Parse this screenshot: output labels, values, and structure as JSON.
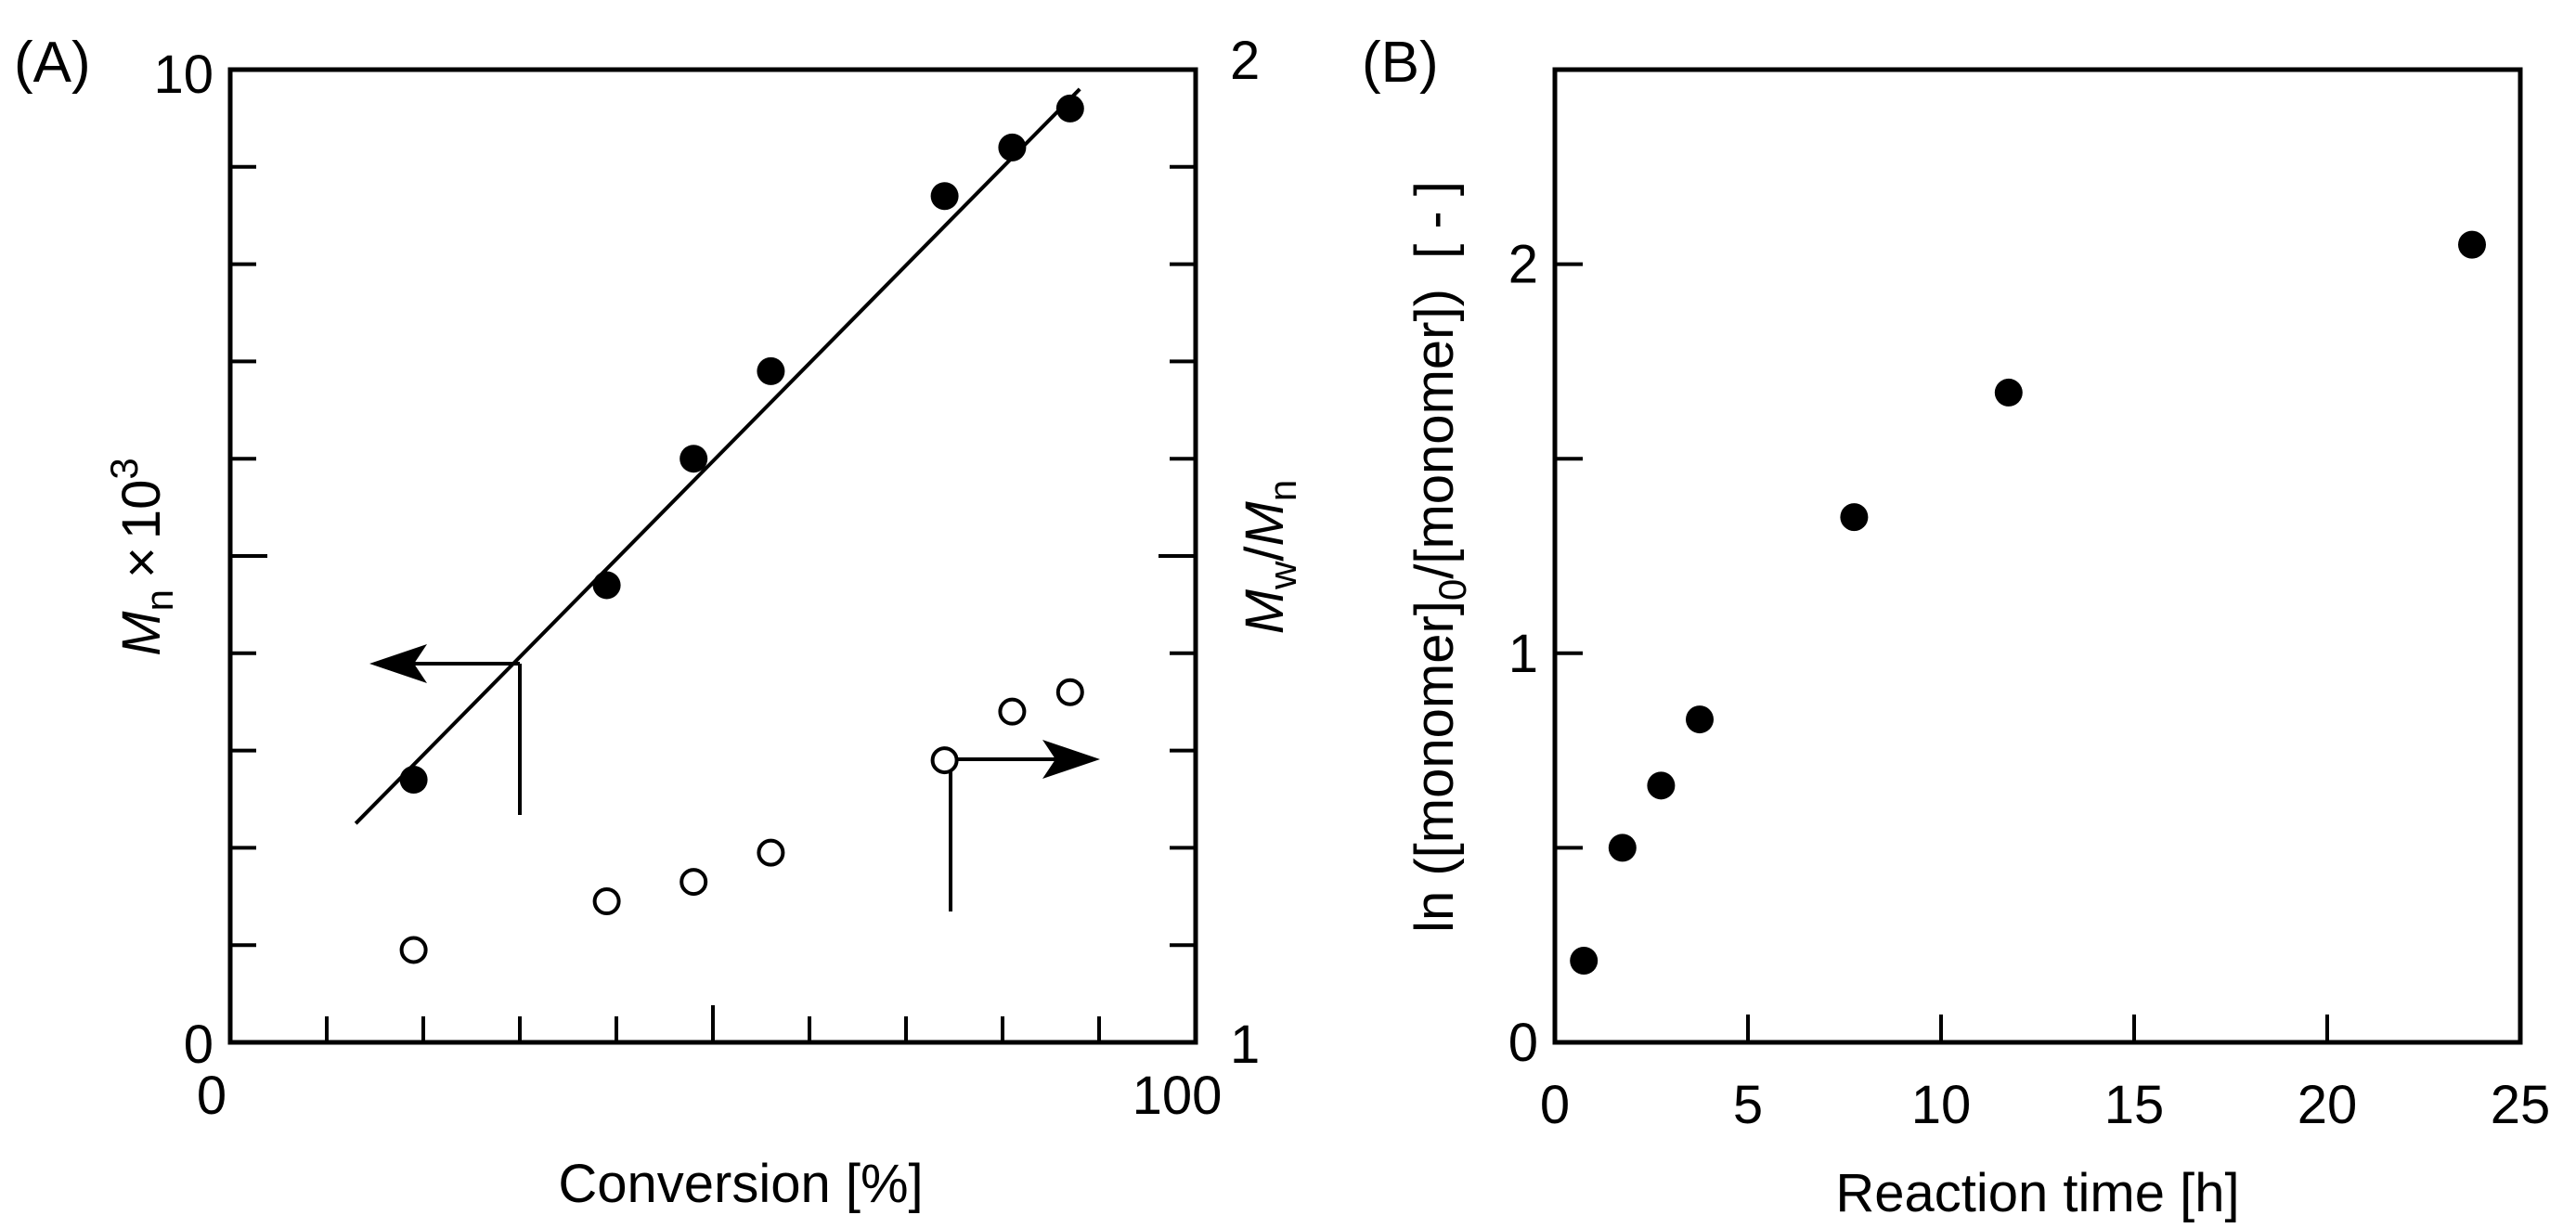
{
  "chart_data": [
    {
      "panel_label": "(A)",
      "type": "scatter",
      "xlabel": "Conversion [%]",
      "xlim": [
        0,
        100
      ],
      "x_ticks": [
        {
          "value": 0,
          "label": "0"
        },
        {
          "value": 100,
          "label": "100"
        }
      ],
      "ylabel_left": {
        "main": "M",
        "sub": "n",
        "times": "×",
        "base": "10",
        "sup": "3"
      },
      "ylim_left": [
        0,
        10
      ],
      "y_left_ticks": [
        {
          "value": 0,
          "label": "0"
        },
        {
          "value": 10,
          "label": "10"
        }
      ],
      "ylabel_right": {
        "main1": "M",
        "sub1": "w",
        "slash": "/",
        "main2": "M",
        "sub2": "n"
      },
      "ylim_right": [
        1,
        2
      ],
      "y_right_ticks": [
        {
          "value": 1,
          "label": "1"
        },
        {
          "value": 2,
          "label": "2"
        }
      ],
      "series": [
        {
          "name": "Mn",
          "axis": "left",
          "marker": "filled-circle",
          "x": [
            19,
            39,
            48,
            56,
            74,
            81,
            87
          ],
          "y": [
            2.7,
            4.7,
            6.0,
            6.9,
            8.7,
            9.2,
            9.6
          ]
        },
        {
          "name": "Mw/Mn",
          "axis": "right",
          "marker": "open-circle",
          "x": [
            19,
            39,
            48,
            56,
            74,
            81,
            87
          ],
          "y": [
            1.095,
            1.145,
            1.165,
            1.195,
            1.29,
            1.34,
            1.36
          ]
        }
      ],
      "fit_line": {
        "x": [
          13,
          88
        ],
        "y": [
          2.25,
          9.8
        ]
      }
    },
    {
      "panel_label": "(B)",
      "type": "scatter",
      "xlabel": "Reaction time [h]",
      "xlim": [
        0,
        25
      ],
      "x_ticks": [
        {
          "value": 0,
          "label": "0"
        },
        {
          "value": 5,
          "label": "5"
        },
        {
          "value": 10,
          "label": "10"
        },
        {
          "value": 15,
          "label": "15"
        },
        {
          "value": 20,
          "label": "20"
        },
        {
          "value": 25,
          "label": "25"
        }
      ],
      "ylabel": {
        "pre": "ln ([monomer]",
        "sub": "0",
        "post": "/[monomer])  [ - ]"
      },
      "ylim": [
        0,
        2.5
      ],
      "y_ticks": [
        {
          "value": 0,
          "label": "0"
        },
        {
          "value": 1,
          "label": "1"
        },
        {
          "value": 2,
          "label": "2"
        }
      ],
      "series": [
        {
          "name": "ln([M]0/[M])",
          "marker": "filled-circle",
          "x": [
            0.75,
            1.75,
            2.75,
            3.75,
            7.75,
            11.75,
            23.75
          ],
          "y": [
            0.21,
            0.5,
            0.66,
            0.83,
            1.35,
            1.67,
            2.05
          ]
        }
      ]
    }
  ]
}
